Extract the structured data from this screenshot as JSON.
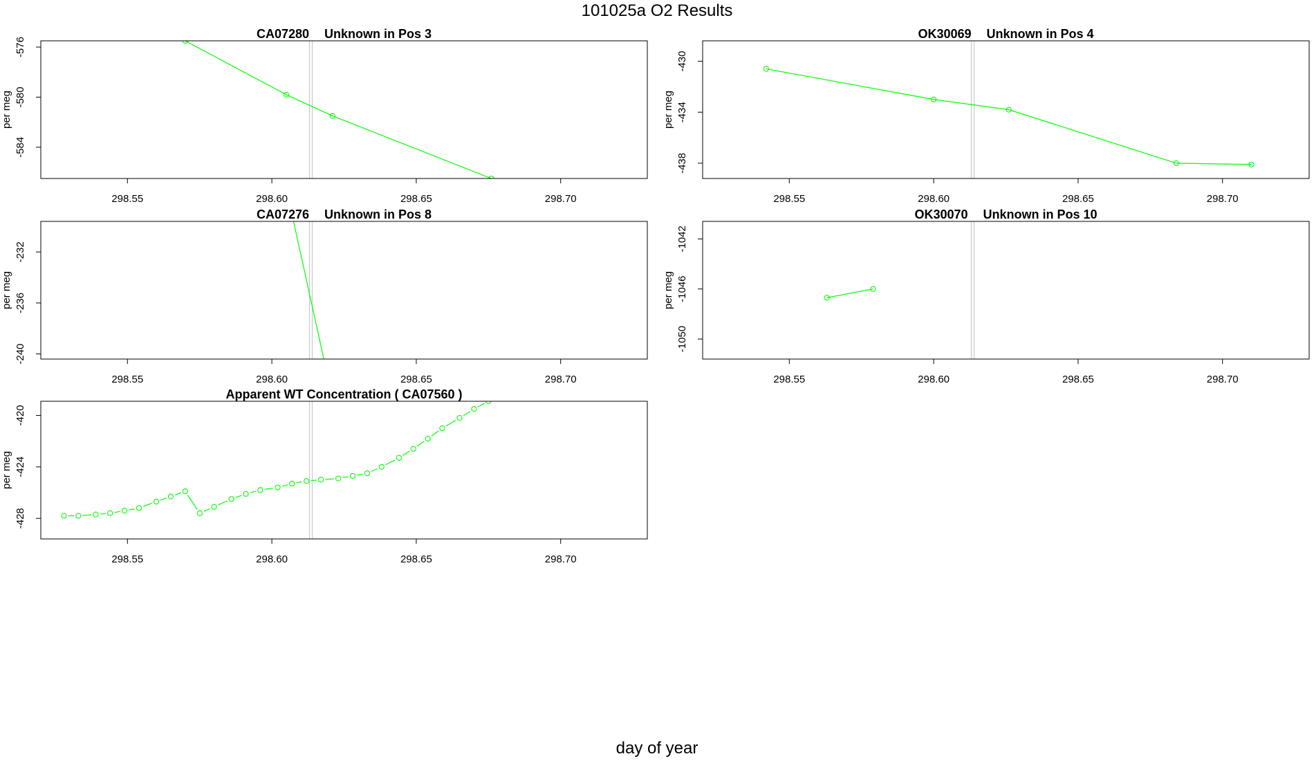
{
  "title": "101025a  O2 Results",
  "xlabel": "day of year",
  "colors": {
    "series": "#00ff00",
    "frame": "#000000",
    "marker_line": "#c8c8c8"
  },
  "chart_data": [
    {
      "type": "line",
      "title_id": "CA07280",
      "title_desc": "Unknown in Pos 3",
      "ylabel": "per meg",
      "xlim": [
        298.52,
        298.73
      ],
      "ylim": [
        -586.5,
        -575.5
      ],
      "xticks": [
        "298.55",
        "298.60",
        "298.65",
        "298.70"
      ],
      "yticks": [
        "-576",
        "-580",
        "-584"
      ],
      "vline": 298.6135,
      "show_points": true,
      "line_style": "solid",
      "series": [
        {
          "x": [
            298.57,
            298.605,
            298.621,
            298.676
          ],
          "y": [
            -575.5,
            -579.8,
            -581.5,
            -586.5
          ]
        }
      ]
    },
    {
      "type": "line",
      "title_id": "OK30069",
      "title_desc": "Unknown in Pos 4",
      "ylabel": "per meg",
      "xlim": [
        298.52,
        298.73
      ],
      "ylim": [
        -439.2,
        -428.4
      ],
      "xticks": [
        "298.55",
        "298.60",
        "298.65",
        "298.70"
      ],
      "yticks": [
        "-430",
        "-434",
        "-438"
      ],
      "vline": 298.6135,
      "show_points": true,
      "line_style": "solid",
      "series": [
        {
          "x": [
            298.542,
            298.6,
            298.626,
            298.684,
            298.71
          ],
          "y": [
            -430.6,
            -433.0,
            -433.8,
            -438.0,
            -438.1
          ]
        }
      ]
    },
    {
      "type": "line",
      "title_id": "CA07276",
      "title_desc": "Unknown in Pos 8",
      "ylabel": "per meg",
      "xlim": [
        298.52,
        298.73
      ],
      "ylim": [
        -240.4,
        -229.6
      ],
      "xticks": [
        "298.55",
        "298.60",
        "298.65",
        "298.70"
      ],
      "yticks": [
        "-232",
        "-236",
        "-240"
      ],
      "vline": 298.6135,
      "show_points": false,
      "line_style": "solid",
      "series": [
        {
          "x": [
            298.6075,
            298.618
          ],
          "y": [
            -229.6,
            -240.4
          ]
        }
      ]
    },
    {
      "type": "line",
      "title_id": "OK30070",
      "title_desc": "Unknown in Pos 10",
      "ylabel": "per meg",
      "xlim": [
        298.52,
        298.73
      ],
      "ylim": [
        -1051.6,
        -1040.6
      ],
      "xticks": [
        "298.55",
        "298.60",
        "298.65",
        "298.70"
      ],
      "yticks": [
        "-1042",
        "-1046",
        "-1050"
      ],
      "vline": 298.6135,
      "show_points": true,
      "line_style": "solid",
      "series": [
        {
          "x": [
            298.563,
            298.579
          ],
          "y": [
            -1046.7,
            -1046.0
          ]
        }
      ]
    },
    {
      "type": "line",
      "title": "Apparent WT Concentration ( CA07560 )",
      "ylabel": "per meg",
      "xlim": [
        298.52,
        298.73
      ],
      "ylim": [
        -429.6,
        -418.9
      ],
      "xticks": [
        "298.55",
        "298.60",
        "298.65",
        "298.70"
      ],
      "yticks": [
        "-420",
        "-424",
        "-428"
      ],
      "vline": 298.6135,
      "show_points": true,
      "line_style": "dashed",
      "series": [
        {
          "x": [
            298.528,
            298.533,
            298.539,
            298.544,
            298.549,
            298.554,
            298.56,
            298.565,
            298.57,
            298.575,
            298.58,
            298.586,
            298.591,
            298.596,
            298.602,
            298.607,
            298.612,
            298.617,
            298.623,
            298.628,
            298.633,
            298.638,
            298.644,
            298.649,
            298.654,
            298.659,
            298.665,
            298.67,
            298.675
          ],
          "y": [
            -427.8,
            -427.8,
            -427.7,
            -427.6,
            -427.4,
            -427.2,
            -426.7,
            -426.3,
            -425.9,
            -427.6,
            -427.1,
            -426.5,
            -426.1,
            -425.8,
            -425.6,
            -425.3,
            -425.1,
            -425.0,
            -424.9,
            -424.7,
            -424.5,
            -424.0,
            -423.3,
            -422.6,
            -421.8,
            -421.0,
            -420.2,
            -419.5,
            -418.9
          ]
        }
      ]
    }
  ]
}
